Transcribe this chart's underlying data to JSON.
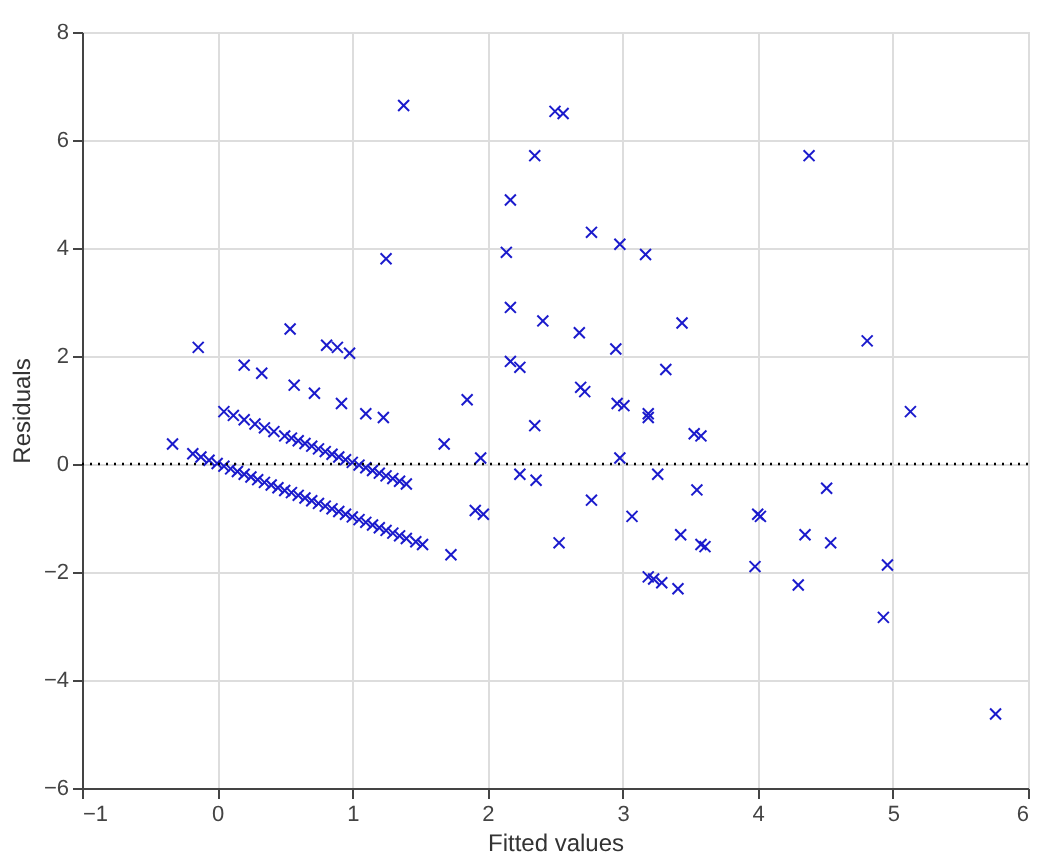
{
  "chart_data": {
    "type": "scatter",
    "xlabel": "Fitted values",
    "ylabel": "Residuals",
    "xlim": [
      -1,
      6
    ],
    "ylim": [
      -6,
      8
    ],
    "xticks": [
      -1,
      0,
      1,
      2,
      3,
      4,
      5,
      6
    ],
    "yticks": [
      -6,
      -4,
      -2,
      0,
      2,
      4,
      6,
      8
    ],
    "grid": true,
    "marker": "cross",
    "ref_lines": [
      {
        "axis": "y",
        "value": 0,
        "color": "#000000",
        "line_style": "dotted"
      }
    ],
    "series": [
      {
        "color": "#1a1acc",
        "x": [
          -0.18,
          -0.12,
          -0.06,
          0.0,
          0.05,
          0.1,
          0.15,
          0.2,
          0.25,
          0.3,
          0.35,
          0.4,
          0.45,
          0.5,
          0.55,
          0.6,
          0.65,
          0.7,
          0.75,
          0.8,
          0.85,
          0.9,
          0.95,
          1.0,
          1.05,
          1.1,
          1.15,
          1.2,
          1.25,
          1.3,
          1.35,
          1.4,
          1.47,
          1.52,
          0.05,
          0.12,
          0.2,
          0.28,
          0.35,
          0.42,
          0.5,
          0.55,
          0.6,
          0.65,
          0.7,
          0.75,
          0.8,
          0.85,
          0.9,
          0.95,
          1.0,
          1.05,
          1.1,
          1.15,
          1.2,
          1.25,
          1.3,
          1.35,
          1.4,
          -0.33,
          -0.14,
          0.2,
          0.33,
          0.57,
          0.72,
          0.92,
          1.1,
          1.23,
          0.54,
          0.81,
          0.89,
          0.98,
          1.25,
          1.38,
          2.5,
          2.56,
          2.35,
          2.17,
          2.77,
          2.14,
          2.98,
          3.17,
          2.17,
          2.41,
          2.68,
          3.44,
          2.95,
          3.32,
          2.17,
          2.24,
          1.85,
          2.69,
          2.72,
          2.96,
          3.01,
          3.19,
          3.19,
          2.35,
          3.53,
          3.58,
          1.68,
          1.95,
          2.98,
          2.24,
          2.36,
          3.26,
          3.55,
          2.77,
          1.91,
          1.97,
          3.07,
          3.43,
          3.58,
          3.61,
          2.53,
          1.73,
          3.19,
          3.23,
          3.29,
          3.41,
          4.38,
          4.81,
          5.13,
          4.51,
          4.0,
          4.02,
          4.35,
          4.54,
          3.98,
          4.3,
          4.96,
          4.93,
          5.76
        ],
        "values": [
          0.19,
          0.13,
          0.07,
          0.01,
          -0.04,
          -0.09,
          -0.14,
          -0.19,
          -0.24,
          -0.29,
          -0.34,
          -0.39,
          -0.44,
          -0.49,
          -0.53,
          -0.58,
          -0.63,
          -0.68,
          -0.73,
          -0.78,
          -0.83,
          -0.88,
          -0.93,
          -0.98,
          -1.03,
          -1.08,
          -1.13,
          -1.18,
          -1.23,
          -1.28,
          -1.33,
          -1.38,
          -1.44,
          -1.49,
          0.97,
          0.9,
          0.82,
          0.74,
          0.67,
          0.6,
          0.52,
          0.48,
          0.43,
          0.38,
          0.33,
          0.28,
          0.23,
          0.18,
          0.13,
          0.08,
          0.03,
          -0.02,
          -0.07,
          -0.12,
          -0.17,
          -0.22,
          -0.27,
          -0.32,
          -0.37,
          0.37,
          2.16,
          1.83,
          1.68,
          1.46,
          1.31,
          1.12,
          0.93,
          0.86,
          2.5,
          2.2,
          2.16,
          2.05,
          3.8,
          6.64,
          6.53,
          6.49,
          5.71,
          4.89,
          4.29,
          3.92,
          4.07,
          3.88,
          2.9,
          2.65,
          2.43,
          2.61,
          2.13,
          1.75,
          1.9,
          1.79,
          1.19,
          1.42,
          1.34,
          1.12,
          1.08,
          0.93,
          0.86,
          0.71,
          0.56,
          0.52,
          0.37,
          0.11,
          0.11,
          -0.19,
          -0.3,
          -0.19,
          -0.48,
          -0.67,
          -0.86,
          -0.93,
          -0.97,
          -1.31,
          -1.49,
          -1.53,
          -1.46,
          -1.68,
          -2.09,
          -2.13,
          -2.2,
          -2.31,
          5.71,
          2.28,
          0.97,
          -0.45,
          -0.93,
          -0.97,
          -1.31,
          -1.46,
          -1.9,
          -2.24,
          -1.87,
          -2.84,
          -4.63
        ]
      }
    ]
  }
}
